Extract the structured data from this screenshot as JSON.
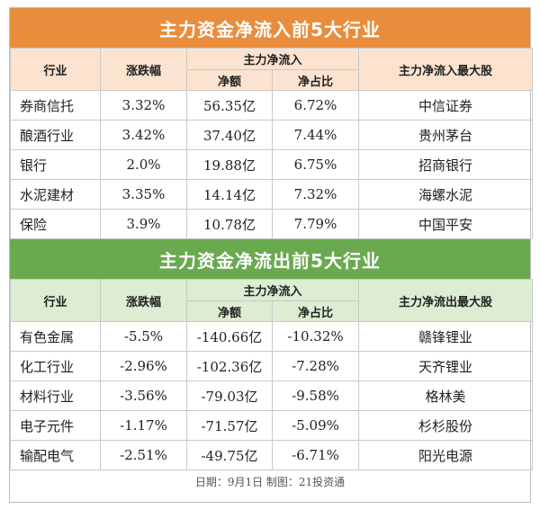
{
  "inflow": {
    "title": "主力资金净流入前5大行业",
    "headers": {
      "industry": "行业",
      "change": "涨跌幅",
      "net_flow": "主力净流入",
      "net_amount": "净额",
      "net_ratio": "净占比",
      "top_stock": "主力净流入最大股"
    },
    "rows": [
      {
        "industry": "券商信托",
        "change": "3.32%",
        "amount": "56.35亿",
        "ratio": "6.72%",
        "stock": "中信证券"
      },
      {
        "industry": "酿酒行业",
        "change": "3.42%",
        "amount": "37.40亿",
        "ratio": "7.44%",
        "stock": "贵州茅台"
      },
      {
        "industry": "银行",
        "change": "2.0%",
        "amount": "19.88亿",
        "ratio": "6.75%",
        "stock": "招商银行"
      },
      {
        "industry": "水泥建材",
        "change": "3.35%",
        "amount": "14.14亿",
        "ratio": "7.32%",
        "stock": "海螺水泥"
      },
      {
        "industry": "保险",
        "change": "3.9%",
        "amount": "10.78亿",
        "ratio": "7.79%",
        "stock": "中国平安"
      }
    ]
  },
  "outflow": {
    "title": "主力资金净流出前5大行业",
    "headers": {
      "industry": "行业",
      "change": "涨跌幅",
      "net_flow": "主力净流入",
      "net_amount": "净额",
      "net_ratio": "净占比",
      "top_stock": "主力净流出最大股"
    },
    "rows": [
      {
        "industry": "有色金属",
        "change": "-5.5%",
        "amount": "-140.66亿",
        "ratio": "-10.32%",
        "stock": "赣锋锂业"
      },
      {
        "industry": "化工行业",
        "change": "-2.96%",
        "amount": "-102.36亿",
        "ratio": "-7.28%",
        "stock": "天齐锂业"
      },
      {
        "industry": "材料行业",
        "change": "-3.56%",
        "amount": "-79.03亿",
        "ratio": "-9.58%",
        "stock": "格林美"
      },
      {
        "industry": "电子元件",
        "change": "-1.17%",
        "amount": "-71.57亿",
        "ratio": "-5.09%",
        "stock": "杉杉股份"
      },
      {
        "industry": "输配电气",
        "change": "-2.51%",
        "amount": "-49.75亿",
        "ratio": "-6.71%",
        "stock": "阳光电源"
      }
    ]
  },
  "footer": "日期：9月1日  制图：21投资通",
  "colors": {
    "inflow_title_bg": "#e98d3d",
    "inflow_header_bg": "#fbe3cf",
    "outflow_title_bg": "#6aaa4f",
    "outflow_header_bg": "#dcedd3"
  }
}
